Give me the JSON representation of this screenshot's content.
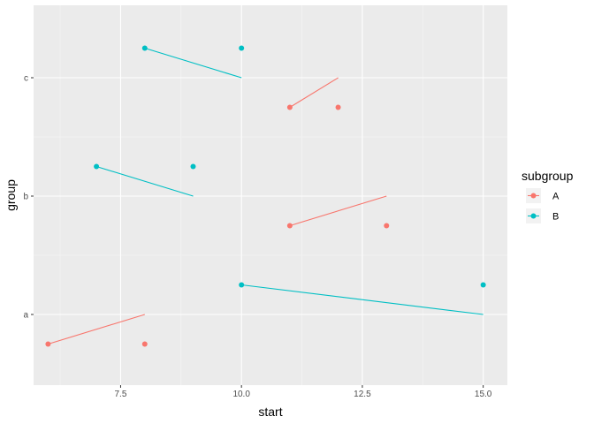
{
  "chart_data": {
    "type": "line",
    "xlabel": "start",
    "ylabel": "group",
    "xlim": [
      5.7,
      15.5
    ],
    "x_ticks": [
      7.5,
      10.0,
      12.5,
      15.0
    ],
    "x_tick_labels": [
      "7.5",
      "10.0",
      "12.5",
      "15.0"
    ],
    "categories": [
      "a",
      "b",
      "c"
    ],
    "grid": true,
    "legend": {
      "title": "subgroup",
      "placement": "right",
      "entries": [
        "A",
        "B"
      ]
    },
    "colors": {
      "A": "#F8766D",
      "B": "#00BFC4"
    },
    "series": [
      {
        "name": "A",
        "segments": [
          {
            "group": "a",
            "from": [
              6,
              -0.25
            ],
            "to": [
              8,
              0.0
            ]
          },
          {
            "group": "b",
            "from": [
              11,
              -0.25
            ],
            "to": [
              13,
              0.0
            ]
          },
          {
            "group": "c",
            "from": [
              11,
              -0.25
            ],
            "to": [
              12,
              0.0
            ]
          }
        ],
        "points": [
          {
            "group": "a",
            "x": 6,
            "offset": -0.25
          },
          {
            "group": "a",
            "x": 8,
            "offset": -0.25
          },
          {
            "group": "b",
            "x": 11,
            "offset": -0.25
          },
          {
            "group": "b",
            "x": 13,
            "offset": -0.25
          },
          {
            "group": "c",
            "x": 11,
            "offset": -0.25
          },
          {
            "group": "c",
            "x": 12,
            "offset": -0.25
          }
        ]
      },
      {
        "name": "B",
        "segments": [
          {
            "group": "a",
            "from": [
              10,
              0.25
            ],
            "to": [
              15,
              0.0
            ]
          },
          {
            "group": "b",
            "from": [
              7,
              0.25
            ],
            "to": [
              9,
              0.0
            ]
          },
          {
            "group": "c",
            "from": [
              8,
              0.25
            ],
            "to": [
              10,
              0.0
            ]
          }
        ],
        "points": [
          {
            "group": "a",
            "x": 10,
            "offset": 0.25
          },
          {
            "group": "a",
            "x": 15,
            "offset": 0.25
          },
          {
            "group": "b",
            "x": 7,
            "offset": 0.25
          },
          {
            "group": "b",
            "x": 9,
            "offset": 0.25
          },
          {
            "group": "c",
            "x": 8,
            "offset": 0.25
          },
          {
            "group": "c",
            "x": 10,
            "offset": 0.25
          }
        ]
      }
    ]
  }
}
